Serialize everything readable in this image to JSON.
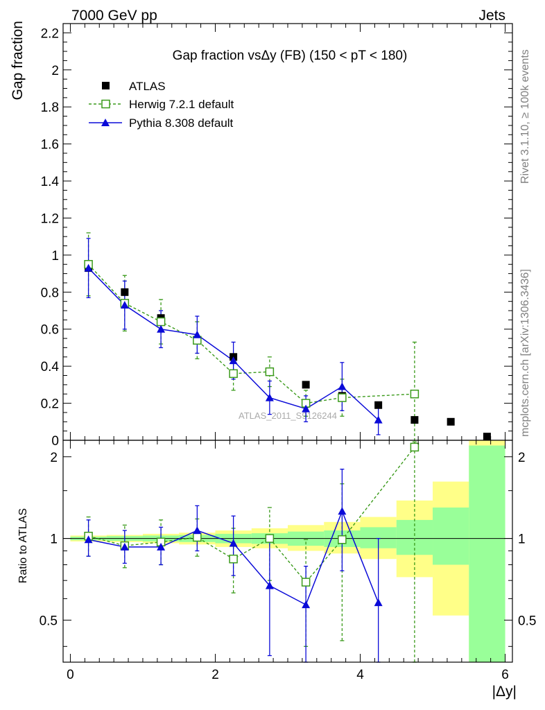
{
  "header": {
    "left": "7000 GeV pp",
    "right": "Jets"
  },
  "side_labels": {
    "rivet": "Rivet 3.1.10, ≥ 100k events",
    "mcplots": "mcplots.cern.ch [arXiv:1306.3436]"
  },
  "watermark": "ATLAS_2011_S9126244",
  "colors": {
    "data": "#000000",
    "herwig": "#3a9a1a",
    "pythia": "#0a0ad8",
    "band_inner": "#99ff99",
    "band_outer": "#ffff88"
  },
  "chart_data": [
    {
      "type": "scatter",
      "title": "Gap fraction vsΔy (FB) (150 < pT < 180)",
      "ylabel": "Gap fraction",
      "xlabel": "",
      "xlim": [
        -0.1,
        6.1
      ],
      "ylim": [
        0,
        2.25
      ],
      "x_ticks": [
        0,
        2,
        4,
        6
      ],
      "y_ticks": [
        0,
        0.2,
        0.4,
        0.6,
        0.8,
        1,
        1.2,
        1.4,
        1.6,
        1.8,
        2,
        2.2
      ],
      "legend_position": "top-left",
      "series": [
        {
          "name": "ATLAS",
          "marker": "square-filled",
          "x": [
            0.25,
            0.75,
            1.25,
            1.75,
            2.25,
            2.75,
            3.25,
            3.75,
            4.25,
            4.75,
            5.25,
            5.75
          ],
          "y": [
            0.93,
            0.8,
            0.66,
            0.54,
            0.45,
            0.37,
            0.3,
            0.24,
            0.19,
            0.11,
            0.1,
            0.02
          ]
        },
        {
          "name": "Herwig 7.2.1 default",
          "marker": "square-open",
          "line": "dashed",
          "x": [
            0.25,
            0.75,
            1.25,
            1.75,
            2.25,
            2.75,
            3.25,
            3.75,
            4.75
          ],
          "y": [
            0.95,
            0.74,
            0.64,
            0.54,
            0.36,
            0.37,
            0.2,
            0.23,
            0.25
          ],
          "err": [
            0.17,
            0.15,
            0.12,
            0.1,
            0.09,
            0.08,
            0.07,
            0.1,
            0.28
          ]
        },
        {
          "name": "Pythia 8.308 default",
          "marker": "triangle-filled",
          "line": "solid",
          "x": [
            0.25,
            0.75,
            1.25,
            1.75,
            2.25,
            2.75,
            3.25,
            3.75,
            4.25
          ],
          "y": [
            0.93,
            0.73,
            0.6,
            0.57,
            0.43,
            0.23,
            0.17,
            0.29,
            0.11
          ],
          "err": [
            0.16,
            0.13,
            0.1,
            0.1,
            0.1,
            0.09,
            0.07,
            0.13,
            0.08
          ]
        }
      ]
    },
    {
      "type": "line",
      "ylabel": "Ratio to ATLAS",
      "xlabel": "|Δy|",
      "xlim": [
        -0.1,
        6.1
      ],
      "ylim": [
        0.35,
        2.3
      ],
      "x_ticks": [
        0,
        2,
        4,
        6
      ],
      "y_ticks": [
        0.5,
        1,
        2
      ],
      "y_scale": "log",
      "reference_line": 1,
      "bands": {
        "x_edges": [
          0,
          0.5,
          1,
          1.5,
          2,
          2.5,
          3,
          3.5,
          4,
          4.5,
          5,
          5.5,
          6
        ],
        "inner": [
          [
            0.985,
            1.015
          ],
          [
            0.98,
            1.02
          ],
          [
            0.975,
            1.025
          ],
          [
            0.97,
            1.03
          ],
          [
            0.96,
            1.04
          ],
          [
            0.955,
            1.045
          ],
          [
            0.94,
            1.06
          ],
          [
            0.93,
            1.07
          ],
          [
            0.92,
            1.1
          ],
          [
            0.87,
            1.17
          ],
          [
            0.8,
            1.3
          ],
          [
            0.35,
            2.2
          ]
        ],
        "outer": [
          [
            0.975,
            1.025
          ],
          [
            0.97,
            1.03
          ],
          [
            0.96,
            1.04
          ],
          [
            0.95,
            1.05
          ],
          [
            0.93,
            1.07
          ],
          [
            0.92,
            1.09
          ],
          [
            0.9,
            1.12
          ],
          [
            0.88,
            1.15
          ],
          [
            0.84,
            1.2
          ],
          [
            0.72,
            1.38
          ],
          [
            0.52,
            1.62
          ],
          [
            0.35,
            2.3
          ]
        ]
      },
      "series": [
        {
          "name": "Herwig 7.2.1 default",
          "x": [
            0.25,
            0.75,
            1.25,
            1.75,
            2.25,
            2.75,
            3.25,
            3.75,
            4.75
          ],
          "y": [
            1.02,
            0.94,
            0.97,
            1.01,
            0.84,
            1.0,
            0.69,
            0.99,
            2.17
          ],
          "err_lo": [
            0.16,
            0.16,
            0.17,
            0.15,
            0.21,
            0.3,
            0.29,
            0.57,
            1.82
          ],
          "err_hi": [
            0.18,
            0.18,
            0.2,
            0.17,
            0.25,
            0.3,
            0.3,
            0.6,
            0.1
          ]
        },
        {
          "name": "Pythia 8.308 default",
          "x": [
            0.25,
            0.75,
            1.25,
            1.75,
            2.25,
            2.75,
            3.25,
            3.75,
            4.25
          ],
          "y": [
            0.99,
            0.93,
            0.93,
            1.07,
            0.96,
            0.67,
            0.57,
            1.26,
            0.58
          ],
          "err_lo": [
            0.13,
            0.12,
            0.13,
            0.17,
            0.23,
            0.3,
            0.22,
            0.5,
            0.23
          ],
          "err_hi": [
            0.18,
            0.14,
            0.17,
            0.25,
            0.25,
            0.3,
            0.22,
            0.54,
            0.42
          ]
        }
      ]
    }
  ]
}
